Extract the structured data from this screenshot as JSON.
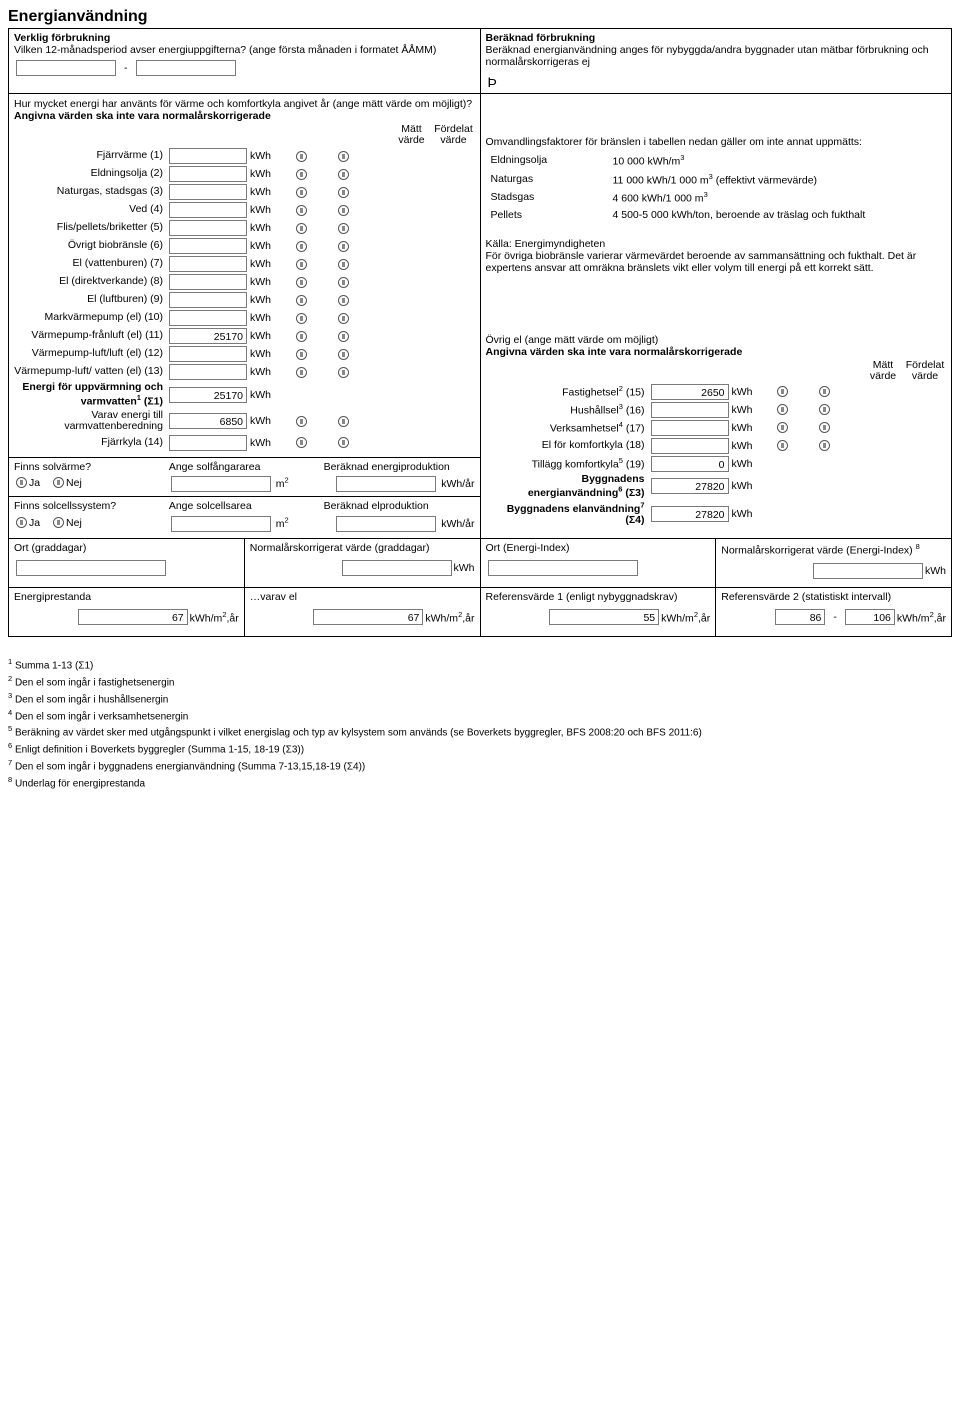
{
  "title": "Energianvändning",
  "left_header": {
    "h": "Verklig förbrukning",
    "q1": "Vilken 12-månadsperiod avser energiuppgifterna? (ange första månaden i formatet ÅÅMM)",
    "dash": "-",
    "q2": "Hur mycket energi har använts för värme och komfortkyla angivet år (ange mätt värde om möjligt)?",
    "q3": "Angivna värden ska inte vara normalårskorrigerade",
    "col_matt": "Mätt värde",
    "col_ford": "Fördelat värde"
  },
  "right_header": {
    "h": "Beräknad förbrukning",
    "t": "Beräknad energianvändning anges för nybyggda/andra byggnader utan mätbar förbrukning och normalårskorrigeras ej",
    "thorn": "Þ"
  },
  "fuel_rows": [
    {
      "label": "Fjärrvärme (1)",
      "val": "",
      "unit": "kWh"
    },
    {
      "label": "Eldningsolja (2)",
      "val": "",
      "unit": "kWh"
    },
    {
      "label": "Naturgas, stadsgas (3)",
      "val": "",
      "unit": "kWh"
    },
    {
      "label": "Ved (4)",
      "val": "",
      "unit": "kWh"
    },
    {
      "label": "Flis/pellets/briketter (5)",
      "val": "",
      "unit": "kWh"
    },
    {
      "label": "Övrigt biobränsle (6)",
      "val": "",
      "unit": "kWh"
    },
    {
      "label": "El (vattenburen) (7)",
      "val": "",
      "unit": "kWh"
    },
    {
      "label": "El (direktverkande) (8)",
      "val": "",
      "unit": "kWh"
    },
    {
      "label": "El (luftburen) (9)",
      "val": "",
      "unit": "kWh"
    },
    {
      "label": "Markvärmepump (el) (10)",
      "val": "",
      "unit": "kWh"
    },
    {
      "label": "Värmepump-frånluft (el) (11)",
      "val": "25170",
      "unit": "kWh"
    },
    {
      "label": "Värmepump-luft/luft (el) (12)",
      "val": "",
      "unit": "kWh"
    },
    {
      "label": "Värmepump-luft/ vatten (el) (13)",
      "val": "",
      "unit": "kWh"
    }
  ],
  "sum_rows": [
    {
      "label": "Energi för uppvärmning och varmvatten",
      "sup": "1",
      "tail": "(Σ1)",
      "val": "25170",
      "unit": "kWh",
      "bold": true,
      "radios": false
    },
    {
      "label": "Varav energi till varmvattenberedning",
      "sup": "",
      "tail": "",
      "val": "6850",
      "unit": "kWh",
      "bold": false,
      "radios": true
    },
    {
      "label": "Fjärrkyla (14)",
      "sup": "",
      "tail": "",
      "val": "",
      "unit": "kWh",
      "bold": false,
      "radios": true
    }
  ],
  "solar": {
    "q1": "Finns solvärme?",
    "q2": "Finns solcellssystem?",
    "c1": "Ange solfångararea",
    "c2": "Ange solcellsarea",
    "p1": "Beräknad energiproduktion",
    "p2": "Beräknad elproduktion",
    "ja": "Ja",
    "nej": "Nej",
    "m2": "m",
    "m2sup": "2",
    "kwhar": "kWh/år"
  },
  "conv": {
    "intro": "Omvandlingsfaktorer för bränslen i tabellen nedan gäller om inte annat uppmätts:",
    "rows": [
      {
        "k": "Eldningsolja",
        "v": "10 000 kWh/m",
        "sup": "3"
      },
      {
        "k": "Naturgas",
        "v": "11 000 kWh/1 000 m",
        "sup": "3",
        "tail": " (effektivt värmevärde)"
      },
      {
        "k": "Stadsgas",
        "v": "4 600 kWh/1 000 m",
        "sup": "3"
      },
      {
        "k": "Pellets",
        "v": "4 500-5 000 kWh/ton, beroende av träslag och fukthalt",
        "sup": ""
      }
    ],
    "src": "Källa: Energimyndigheten",
    "note": "För övriga biobränsle varierar värmevärdet beroende av sammansättning och fukthalt. Det är expertens ansvar att omräkna bränslets vikt eller volym till energi på ett korrekt sätt."
  },
  "ovrig_el": {
    "h": "Övrig el (ange mätt värde om möjligt)",
    "sub": "Angivna värden ska inte vara normalårskorrigerade",
    "col_matt": "Mätt värde",
    "col_ford": "Fördelat värde",
    "rows": [
      {
        "label": "Fastighetsel",
        "sup": "2",
        "tail": " (15)",
        "val": "2650",
        "unit": "kWh",
        "radios": true
      },
      {
        "label": "Hushållsel",
        "sup": "3",
        "tail": " (16)",
        "val": "",
        "unit": "kWh",
        "radios": true
      },
      {
        "label": "Verksamhetsel",
        "sup": "4",
        "tail": " (17)",
        "val": "",
        "unit": "kWh",
        "radios": true
      },
      {
        "label": "El för komfortkyla (18)",
        "sup": "",
        "tail": "",
        "val": "",
        "unit": "kWh",
        "radios": true
      },
      {
        "label": "Tillägg komfortkyla",
        "sup": "5",
        "tail": " (19)",
        "val": "0",
        "unit": "kWh",
        "radios": false
      },
      {
        "label": "Byggnadens energianvändning",
        "sup": "6",
        "tail": " (Σ3)",
        "val": "27820",
        "unit": "kWh",
        "bold": true,
        "radios": false
      },
      {
        "label": "Byggnadens elanvändning",
        "sup": "7",
        "tail": " (Σ4)",
        "val": "27820",
        "unit": "kWh",
        "bold": true,
        "radios": false
      }
    ]
  },
  "bottom2a": {
    "c1": "Ort (graddagar)",
    "c2": "Normalårskorrigerat värde (graddagar)",
    "c3": "Ort (Energi-Index)",
    "c4": "Normalårskorrigerat värde (Energi-Index)",
    "c4sup": "8",
    "kwh": "kWh"
  },
  "bottom2b": {
    "c1": "Energiprestanda",
    "c2": "…varav el",
    "c3": "Referensvärde 1 (enligt nybyggnadskrav)",
    "c4": "Referensvärde 2 (statistiskt intervall)",
    "v1": "67",
    "v2": "67",
    "v3": "55",
    "v4a": "86",
    "v4b": "106",
    "unit_pre": "kWh/m",
    "unit_sup": "2",
    "unit_post": ",år",
    "dash": "-"
  },
  "footnotes": [
    {
      "n": "1",
      "t": "Summa 1-13 (Σ1)"
    },
    {
      "n": "2",
      "t": "Den el som ingår i fastighetsenergin"
    },
    {
      "n": "3",
      "t": "Den el som ingår i hushållsenergin"
    },
    {
      "n": "4",
      "t": "Den el som ingår i verksamhetsenergin"
    },
    {
      "n": "5",
      "t": "Beräkning av värdet sker med utgångspunkt i vilket energislag och typ av kylsystem som används (se Boverkets byggregler, BFS 2008:20 och BFS 2011:6)"
    },
    {
      "n": "6",
      "t": "Enligt definition i Boverkets byggregler (Summa 1-15, 18-19 (Σ3))"
    },
    {
      "n": "7",
      "t": "Den el som ingår i byggnadens energianvändning (Summa 7-13,15,18-19 (Σ4))"
    },
    {
      "n": "8",
      "t": "Underlag för energiprestanda"
    }
  ]
}
